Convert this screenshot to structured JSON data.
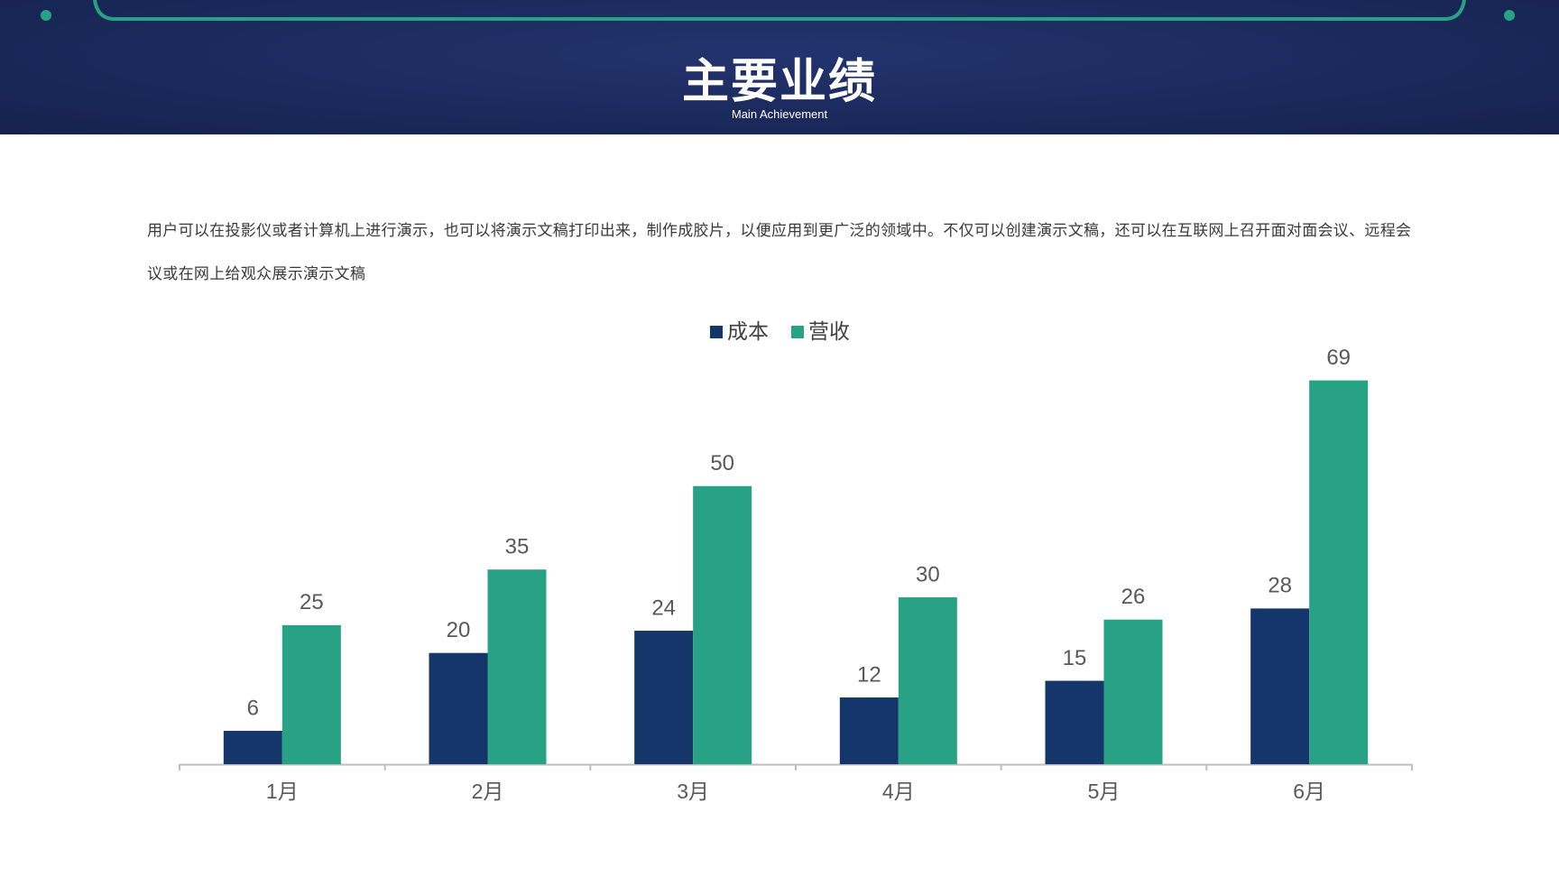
{
  "header": {
    "title": "主要业绩",
    "subtitle": "Main Achievement"
  },
  "body": {
    "paragraph": "用户可以在投影仪或者计算机上进行演示，也可以将演示文稿打印出来，制作成胶片，以便应用到更广泛的领域中。不仅可以创建演示文稿，还可以在互联网上召开面对面会议、远程会议或在网上给观众展示演示文稿"
  },
  "chart_data": {
    "type": "bar",
    "categories": [
      "1月",
      "2月",
      "3月",
      "4月",
      "5月",
      "6月"
    ],
    "series": [
      {
        "name": "成本",
        "color": "#14366b",
        "values": [
          6,
          20,
          24,
          12,
          15,
          28
        ]
      },
      {
        "name": "营收",
        "color": "#27a284",
        "values": [
          25,
          35,
          50,
          30,
          26,
          69
        ]
      }
    ],
    "legend": "top"
  }
}
